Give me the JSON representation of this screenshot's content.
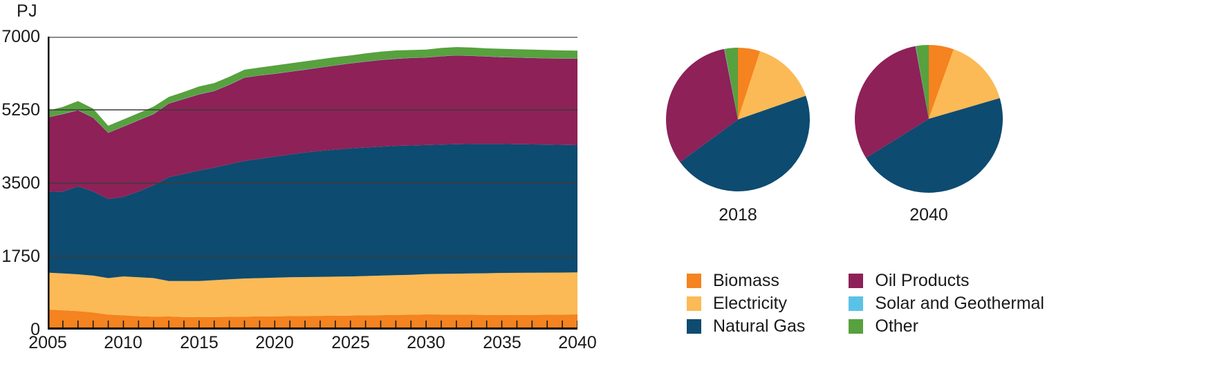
{
  "unit_label": "PJ",
  "colors": {
    "biomass": "#F5831F",
    "electricity": "#FBBA55",
    "natural_gas": "#0D4B70",
    "oil_products": "#8E2158",
    "solar_geothermal": "#5BC2E7",
    "other": "#57A13E",
    "axis": "#000000",
    "tick": "#1a1a1a",
    "gridline": "#3c3c3c",
    "top_gridline": "#8a8a8a"
  },
  "chart_data": [
    {
      "id": "stacked-area",
      "type": "area",
      "stacked": true,
      "title": "",
      "ylabel": "PJ",
      "xlabel": "",
      "grid": true,
      "ylim": [
        0,
        7000
      ],
      "yticks": [
        0,
        1750,
        3500,
        5250,
        7000
      ],
      "ytick_labels": [
        "0",
        "1750",
        "3500",
        "5250",
        "7000"
      ],
      "xlim": [
        2005,
        2040
      ],
      "xticks": [
        2005,
        2010,
        2015,
        2020,
        2025,
        2030,
        2035,
        2040
      ],
      "xtick_labels": [
        "2005",
        "2010",
        "2015",
        "2020",
        "2025",
        "2030",
        "2035",
        "2040"
      ],
      "x": [
        2005,
        2006,
        2007,
        2008,
        2009,
        2010,
        2011,
        2012,
        2013,
        2014,
        2015,
        2016,
        2017,
        2018,
        2019,
        2020,
        2021,
        2022,
        2023,
        2024,
        2025,
        2026,
        2027,
        2028,
        2029,
        2030,
        2031,
        2032,
        2033,
        2034,
        2035,
        2036,
        2037,
        2038,
        2039,
        2040
      ],
      "series": [
        {
          "name": "Biomass",
          "color_key": "biomass",
          "values": [
            480,
            460,
            440,
            410,
            360,
            340,
            320,
            310,
            313,
            300,
            297,
            300,
            305,
            310,
            315,
            319,
            322,
            325,
            328,
            332,
            335,
            340,
            345,
            350,
            355,
            363,
            360,
            358,
            355,
            350,
            347,
            350,
            352,
            355,
            358,
            363
          ]
        },
        {
          "name": "Electricity",
          "color_key": "electricity",
          "values": [
            880,
            880,
            880,
            880,
            870,
            930,
            930,
            920,
            847,
            860,
            863,
            880,
            895,
            910,
            915,
            921,
            928,
            930,
            932,
            933,
            935,
            940,
            945,
            950,
            955,
            963,
            970,
            977,
            985,
            995,
            1007,
            1006,
            1006,
            1005,
            1004,
            1002
          ]
        },
        {
          "name": "Natural Gas",
          "color_key": "natural_gas",
          "values": [
            1930,
            1960,
            2100,
            2010,
            1890,
            1900,
            2050,
            2220,
            2480,
            2560,
            2640,
            2690,
            2750,
            2810,
            2850,
            2890,
            2930,
            2975,
            3010,
            3035,
            3060,
            3070,
            3080,
            3090,
            3090,
            3084,
            3090,
            3095,
            3095,
            3090,
            3081,
            3074,
            3067,
            3060,
            3053,
            3043
          ]
        },
        {
          "name": "Oil Products",
          "color_key": "oil_products",
          "values": [
            1780,
            1850,
            1820,
            1760,
            1580,
            1680,
            1700,
            1700,
            1760,
            1790,
            1820,
            1830,
            1900,
            1990,
            1990,
            1980,
            1980,
            1980,
            1990,
            2010,
            2030,
            2050,
            2070,
            2080,
            2090,
            2090,
            2110,
            2120,
            2105,
            2090,
            2075,
            2070,
            2065,
            2060,
            2060,
            2064
          ]
        },
        {
          "name": "Solar and Geothermal",
          "color_key": "solar_geothermal",
          "values": [
            5,
            5,
            5,
            5,
            5,
            5,
            5,
            5,
            5,
            5,
            5,
            5,
            5,
            5,
            5,
            5,
            5,
            5,
            5,
            5,
            5,
            5,
            5,
            5,
            5,
            5,
            5,
            5,
            5,
            5,
            5,
            5,
            5,
            5,
            5,
            5
          ]
        },
        {
          "name": "Other",
          "color_key": "other",
          "values": [
            155,
            165,
            215,
            215,
            165,
            165,
            165,
            175,
            155,
            165,
            185,
            185,
            185,
            185,
            185,
            195,
            195,
            195,
            195,
            195,
            185,
            195,
            195,
            195,
            185,
            185,
            195,
            195,
            195,
            190,
            195,
            195,
            195,
            195,
            190,
            188
          ]
        }
      ]
    },
    {
      "id": "pie-2018",
      "type": "pie",
      "title": "2018",
      "labels": [
        "Biomass",
        "Electricity",
        "Natural Gas",
        "Oil Products",
        "Solar and Geothermal",
        "Other"
      ],
      "color_keys": [
        "biomass",
        "electricity",
        "natural_gas",
        "oil_products",
        "solar_geothermal",
        "other"
      ],
      "values": [
        310,
        910,
        2810,
        1990,
        5,
        185
      ],
      "radius": 104,
      "start_angle_deg": -90,
      "clockwise": true
    },
    {
      "id": "pie-2040",
      "type": "pie",
      "title": "2040",
      "labels": [
        "Biomass",
        "Electricity",
        "Natural Gas",
        "Oil Products",
        "Solar and Geothermal",
        "Other"
      ],
      "color_keys": [
        "biomass",
        "electricity",
        "natural_gas",
        "oil_products",
        "solar_geothermal",
        "other"
      ],
      "values": [
        363,
        1002,
        3043,
        2064,
        5,
        188
      ],
      "radius": 107,
      "start_angle_deg": -90,
      "clockwise": true
    }
  ],
  "legend": {
    "columns": [
      {
        "items": [
          {
            "label": "Biomass",
            "color_key": "biomass"
          },
          {
            "label": "Electricity",
            "color_key": "electricity"
          },
          {
            "label": "Natural Gas",
            "color_key": "natural_gas"
          }
        ]
      },
      {
        "items": [
          {
            "label": "Oil Products",
            "color_key": "oil_products"
          },
          {
            "label": "Solar and Geothermal",
            "color_key": "solar_geothermal"
          },
          {
            "label": "Other",
            "color_key": "other"
          }
        ]
      }
    ]
  }
}
